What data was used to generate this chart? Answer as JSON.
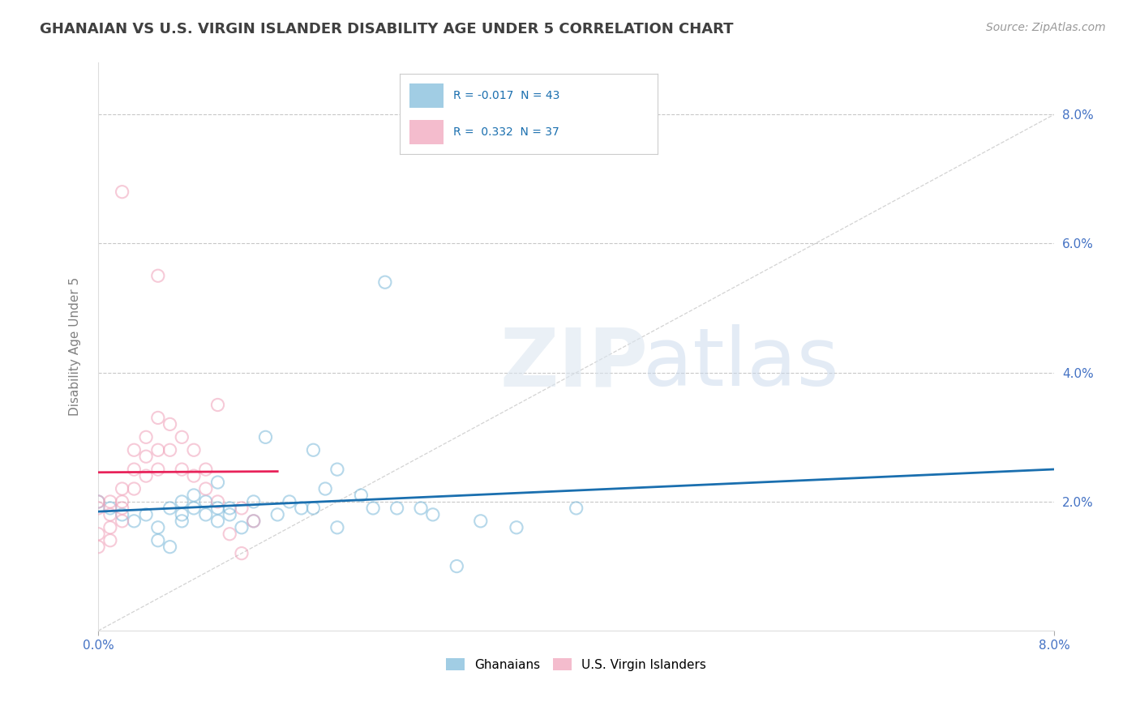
{
  "title": "GHANAIAN VS U.S. VIRGIN ISLANDER DISABILITY AGE UNDER 5 CORRELATION CHART",
  "source": "Source: ZipAtlas.com",
  "ylabel": "Disability Age Under 5",
  "ghanaian_scatter": [
    [
      0.0,
      0.02
    ],
    [
      0.001,
      0.019
    ],
    [
      0.002,
      0.018
    ],
    [
      0.003,
      0.017
    ],
    [
      0.004,
      0.018
    ],
    [
      0.005,
      0.016
    ],
    [
      0.005,
      0.014
    ],
    [
      0.006,
      0.013
    ],
    [
      0.006,
      0.019
    ],
    [
      0.007,
      0.018
    ],
    [
      0.007,
      0.02
    ],
    [
      0.007,
      0.017
    ],
    [
      0.008,
      0.019
    ],
    [
      0.008,
      0.021
    ],
    [
      0.009,
      0.018
    ],
    [
      0.009,
      0.02
    ],
    [
      0.01,
      0.019
    ],
    [
      0.01,
      0.017
    ],
    [
      0.01,
      0.023
    ],
    [
      0.011,
      0.019
    ],
    [
      0.011,
      0.018
    ],
    [
      0.012,
      0.016
    ],
    [
      0.013,
      0.02
    ],
    [
      0.013,
      0.017
    ],
    [
      0.014,
      0.03
    ],
    [
      0.015,
      0.018
    ],
    [
      0.016,
      0.02
    ],
    [
      0.017,
      0.019
    ],
    [
      0.018,
      0.028
    ],
    [
      0.018,
      0.019
    ],
    [
      0.019,
      0.022
    ],
    [
      0.02,
      0.016
    ],
    [
      0.02,
      0.025
    ],
    [
      0.022,
      0.021
    ],
    [
      0.023,
      0.019
    ],
    [
      0.024,
      0.054
    ],
    [
      0.025,
      0.019
    ],
    [
      0.027,
      0.019
    ],
    [
      0.028,
      0.018
    ],
    [
      0.03,
      0.01
    ],
    [
      0.032,
      0.017
    ],
    [
      0.035,
      0.016
    ],
    [
      0.04,
      0.019
    ]
  ],
  "virgin_islander_scatter": [
    [
      0.0,
      0.019
    ],
    [
      0.0,
      0.02
    ],
    [
      0.0,
      0.015
    ],
    [
      0.0,
      0.013
    ],
    [
      0.001,
      0.02
    ],
    [
      0.001,
      0.018
    ],
    [
      0.001,
      0.016
    ],
    [
      0.001,
      0.014
    ],
    [
      0.002,
      0.022
    ],
    [
      0.002,
      0.02
    ],
    [
      0.002,
      0.019
    ],
    [
      0.002,
      0.017
    ],
    [
      0.003,
      0.028
    ],
    [
      0.003,
      0.025
    ],
    [
      0.003,
      0.022
    ],
    [
      0.004,
      0.03
    ],
    [
      0.004,
      0.027
    ],
    [
      0.004,
      0.024
    ],
    [
      0.005,
      0.033
    ],
    [
      0.005,
      0.028
    ],
    [
      0.005,
      0.025
    ],
    [
      0.006,
      0.032
    ],
    [
      0.006,
      0.028
    ],
    [
      0.007,
      0.03
    ],
    [
      0.007,
      0.025
    ],
    [
      0.008,
      0.028
    ],
    [
      0.008,
      0.024
    ],
    [
      0.009,
      0.025
    ],
    [
      0.009,
      0.022
    ],
    [
      0.01,
      0.035
    ],
    [
      0.01,
      0.02
    ],
    [
      0.011,
      0.015
    ],
    [
      0.012,
      0.012
    ],
    [
      0.012,
      0.019
    ],
    [
      0.013,
      0.017
    ],
    [
      0.005,
      0.055
    ],
    [
      0.002,
      0.068
    ]
  ],
  "ghanaian_color": "#7ab8d9",
  "virgin_color": "#f0a0b8",
  "trend_ghanaian_color": "#1a6faf",
  "trend_virgin_color": "#e8235a",
  "title_color": "#404040",
  "axis_label_color": "#808080",
  "tick_label_color": "#4472c4",
  "grid_color": "#c8c8c8",
  "background_color": "#ffffff",
  "xlim": [
    0.0,
    0.08
  ],
  "ylim": [
    0.0,
    0.088
  ],
  "scatter_size": 120,
  "scatter_alpha": 0.55,
  "trend_linewidth": 2.0,
  "watermark_zip_color": "#d0d8e8",
  "watermark_atlas_color": "#c8d8e8"
}
